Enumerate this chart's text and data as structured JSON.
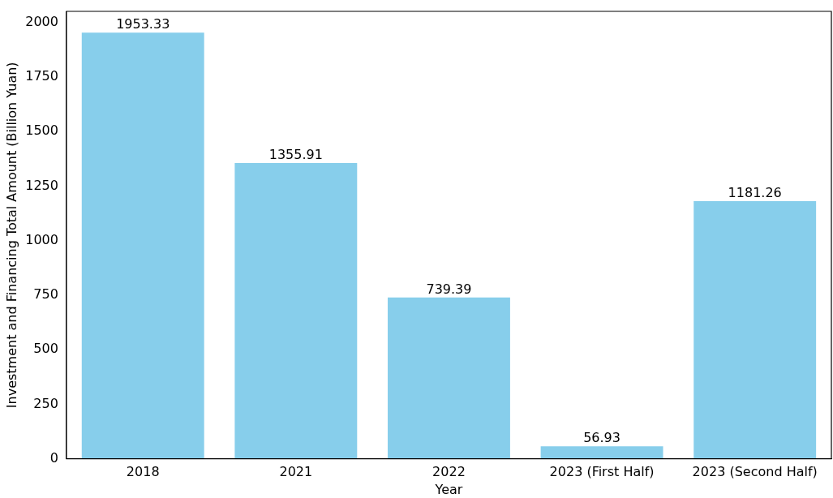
{
  "chart_data": {
    "type": "bar",
    "xlabel": "Year",
    "ylabel": "Investment and Financing Total Amount (Billion Yuan)",
    "categories": [
      "2018",
      "2021",
      "2022",
      "2023 (First Half)",
      "2023 (Second Half)"
    ],
    "values": [
      1953.33,
      1355.91,
      739.39,
      56.93,
      1181.26
    ],
    "color": "#87ceeb",
    "ylim": [
      0,
      2051
    ],
    "yticks": [
      0,
      250,
      500,
      750,
      1000,
      1250,
      1500,
      1750,
      2000
    ],
    "data_labels": true,
    "grid": false,
    "legend": false
  }
}
